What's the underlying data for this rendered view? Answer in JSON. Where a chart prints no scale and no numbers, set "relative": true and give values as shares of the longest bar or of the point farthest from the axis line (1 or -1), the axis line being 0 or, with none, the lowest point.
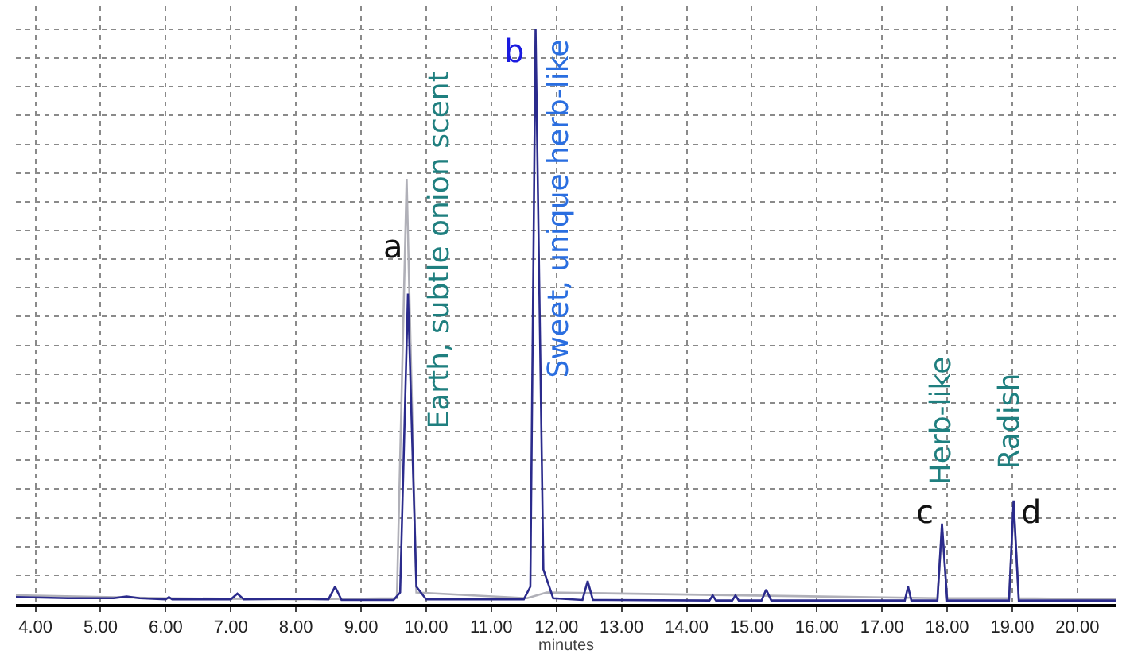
{
  "chart_data": {
    "type": "line",
    "relative": true,
    "xlabel": "minutes",
    "xlim": [
      3.7,
      20.6
    ],
    "xticks": [
      {
        "value": 4,
        "label": "4.00"
      },
      {
        "value": 5,
        "label": "5.00"
      },
      {
        "value": 6,
        "label": "6.00"
      },
      {
        "value": 7,
        "label": "7.00"
      },
      {
        "value": 8,
        "label": "8.00"
      },
      {
        "value": 9,
        "label": "9.00"
      },
      {
        "value": 10,
        "label": "10.00"
      },
      {
        "value": 11,
        "label": "11.00"
      },
      {
        "value": 12,
        "label": "12.00"
      },
      {
        "value": 13,
        "label": "13.00"
      },
      {
        "value": 14,
        "label": "14.00"
      },
      {
        "value": 15,
        "label": "15.00"
      },
      {
        "value": 16,
        "label": "16.00"
      },
      {
        "value": 17,
        "label": "17.00"
      },
      {
        "value": 18,
        "label": "18.00"
      },
      {
        "value": 19,
        "label": "19.00"
      },
      {
        "value": 20,
        "label": "20.00"
      }
    ],
    "grid": true,
    "marker": "none",
    "line_style": "solid",
    "tick_labels": "x",
    "series": [
      {
        "color": "#b0b0b8",
        "x": [
          3.7,
          6.0,
          8.0,
          9.55,
          9.7,
          9.85,
          11.55,
          11.85,
          17.85,
          17.92,
          18.0,
          18.95,
          19.02,
          19.1,
          20.6
        ],
        "values": [
          0.015,
          0.01,
          0.008,
          0.01,
          0.74,
          0.02,
          0.01,
          0.02,
          0.01,
          0.13,
          0.01,
          0.01,
          0.17,
          0.01,
          0.008
        ]
      },
      {
        "color": "#2b2b8c",
        "x": [
          3.7,
          4.5,
          5.2,
          5.4,
          5.6,
          6.0,
          6.05,
          6.1,
          7.0,
          7.1,
          7.2,
          8.0,
          8.5,
          8.6,
          8.7,
          9.5,
          9.6,
          9.72,
          9.85,
          10.0,
          11.5,
          11.6,
          11.68,
          11.8,
          11.95,
          12.4,
          12.48,
          12.56,
          14.35,
          14.4,
          14.45,
          14.7,
          14.75,
          14.8,
          15.15,
          15.22,
          15.3,
          15.6,
          17.35,
          17.4,
          17.45,
          17.85,
          17.92,
          18.0,
          18.95,
          19.02,
          19.1,
          20.6
        ],
        "values": [
          0.012,
          0.01,
          0.01,
          0.013,
          0.01,
          0.008,
          0.012,
          0.008,
          0.008,
          0.018,
          0.008,
          0.009,
          0.008,
          0.03,
          0.007,
          0.007,
          0.02,
          0.54,
          0.03,
          0.008,
          0.008,
          0.03,
          1.0,
          0.06,
          0.01,
          0.007,
          0.04,
          0.007,
          0.006,
          0.015,
          0.006,
          0.006,
          0.015,
          0.006,
          0.006,
          0.025,
          0.006,
          0.006,
          0.006,
          0.03,
          0.006,
          0.006,
          0.14,
          0.006,
          0.006,
          0.18,
          0.006,
          0.006
        ]
      }
    ],
    "annotations": [
      {
        "text": "a",
        "x": 9.72,
        "y": 0.54
      },
      {
        "text": "Earth, subtle onion scent",
        "x": 9.72,
        "y": 0.54
      },
      {
        "text": "b",
        "x": 11.68,
        "y": 1.0
      },
      {
        "text": "Sweet, unique herb-like",
        "x": 11.68,
        "y": 1.0
      },
      {
        "text": "c",
        "x": 17.92,
        "y": 0.14
      },
      {
        "text": "Herb-like",
        "x": 17.92,
        "y": 0.14
      },
      {
        "text": "d",
        "x": 19.02,
        "y": 0.18
      },
      {
        "text": "Radish",
        "x": 19.02,
        "y": 0.18
      }
    ]
  }
}
